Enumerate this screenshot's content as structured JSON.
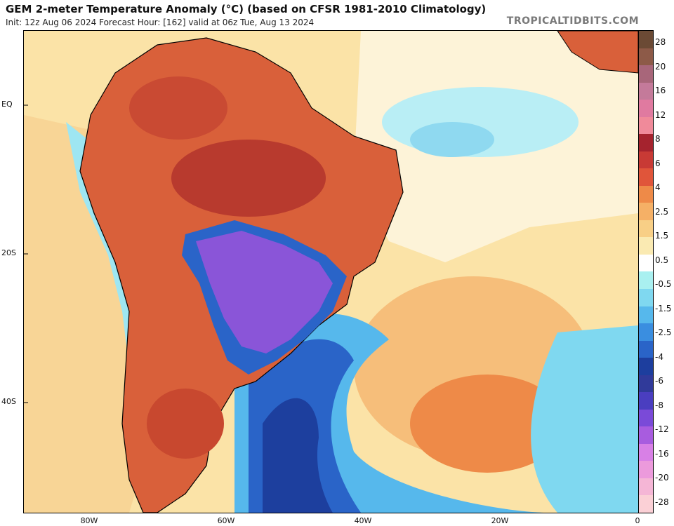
{
  "header": {
    "title": "GEM 2-meter Temperature Anomaly (°C) (based on CFSR 1981-2010 Climatology)",
    "subtitle": "Init: 12z Aug 06 2024   Forecast Hour: [162]   valid at 06z Tue, Aug 13 2024",
    "credit": "TROPICALTIDBITS.COM"
  },
  "axes": {
    "lat_labels": [
      "EQ",
      "20S",
      "40S"
    ],
    "lon_labels": [
      "80W",
      "60W",
      "40W",
      "20W",
      "0"
    ]
  },
  "legend": {
    "labels": [
      "28",
      "20",
      "16",
      "12",
      "8",
      "6",
      "4",
      "2.5",
      "1.5",
      "0.5",
      "-0.5",
      "-1.5",
      "-2.5",
      "-4",
      "-6",
      "-8",
      "-12",
      "-16",
      "-20",
      "-28"
    ],
    "colors": [
      "#6b4a35",
      "#8d5a48",
      "#a8667a",
      "#c47a9a",
      "#e07aa0",
      "#f08a9a",
      "#a5232e",
      "#c83a35",
      "#e0553a",
      "#ee8a48",
      "#f5b066",
      "#f8cf86",
      "#faeab2",
      "#ffffff",
      "#a9f0f0",
      "#7fd8f0",
      "#56b8ec",
      "#3a8ee0",
      "#2a64c8",
      "#1d3e9e",
      "#303a9a",
      "#4a3ec0",
      "#7a4ad8",
      "#a85cdf",
      "#d880e6",
      "#ec9adc",
      "#f5b6d6",
      "#fbd0d6"
    ]
  },
  "map": {
    "region": "South America and South Atlantic",
    "colors": {
      "warm_land": "#d9603a",
      "hot_land": "#b83a2e",
      "cold_purple": "#8a55d8",
      "cold_blue": "#2a5cc8",
      "deep_blue": "#1d3f9e",
      "ocean_warm": "#f6be7a",
      "ocean_light": "#fbe3a7",
      "ocean_cyan": "#9ee6f2",
      "coast": "#000000"
    }
  }
}
